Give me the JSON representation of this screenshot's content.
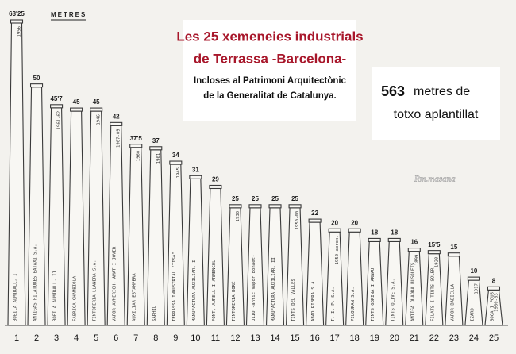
{
  "chart_data": {
    "type": "bar",
    "unit_label": "METRES",
    "title_lines": [
      "Les 25 xemeneies industrials",
      "de Terrassa -Barcelona-"
    ],
    "subtitle_lines": [
      "Incloses al Patrimoni Arquitectònic",
      "de la Generalitat de Catalunya."
    ],
    "total": 563,
    "total_text_lines": [
      "metres de",
      "totxo aplantillat"
    ],
    "signature": "Rm.masana",
    "categories": [
      "1",
      "2",
      "3",
      "4",
      "5",
      "6",
      "7",
      "8",
      "9",
      "10",
      "11",
      "12",
      "13",
      "14",
      "15",
      "16",
      "17",
      "18",
      "19",
      "20",
      "21",
      "22",
      "23",
      "24",
      "25"
    ],
    "values": [
      63.25,
      50,
      45.7,
      45,
      45,
      42,
      37.5,
      37,
      34,
      31,
      29,
      25,
      25,
      25,
      25,
      22,
      20,
      20,
      18,
      18,
      16,
      15.5,
      15,
      10,
      8
    ],
    "value_labels": [
      "63'25",
      "50",
      "45'7",
      "45",
      "45",
      "42",
      "37'5",
      "37",
      "34",
      "31",
      "29",
      "25",
      "25",
      "25",
      "25",
      "22",
      "20",
      "20",
      "18",
      "18",
      "16",
      "15'5",
      "15",
      "10",
      "8"
    ],
    "names": [
      "BOBILA ALMIRALL, I",
      "ANTIGAS FILATURES BATAXI S.A.",
      "BOBILA ALMIRALL, II",
      "FABRICA CHAMBIOLA",
      "TINTORERIA LLANERA S.A.",
      "VAPOR AYMERICH, AMAT I JOVER",
      "AUXILIAR ESTAMPERA",
      "SAPHIL",
      "TERRASSA INDUSTRIAL \"TISA\"",
      "MANUFACTURA AUXILIAR, I",
      "FONT, AURELL I ARMENGOL",
      "TINTORERIA BORÉ",
      "OLIU -antic Vapor Bonaet-",
      "MANUFACTURA AUXILIAR, II",
      "TINTS DEL VALLES",
      "ABAD RIBERA S.A.",
      "T. I. P. S.A.",
      "PILOURAN S.A.",
      "TINTS GORINA I ARNAU",
      "TINTS OLIVE S.A.",
      "ANTIGA QUADRA BUSQUETS",
      "FILATS I TINTS SOLER",
      "VAPOR BADIELLA",
      "IZARD",
      "BOCA I POUS"
    ],
    "years": [
      "1956",
      null,
      "1961-62",
      null,
      "1946",
      "1907-09",
      "1960",
      "1961",
      "1945",
      null,
      null,
      "1930",
      null,
      null,
      "1950-60",
      null,
      "1950 aprox.",
      null,
      null,
      null,
      "1899",
      "1920",
      null,
      "1917",
      "1960-63"
    ],
    "color": "#3a3a3a"
  }
}
